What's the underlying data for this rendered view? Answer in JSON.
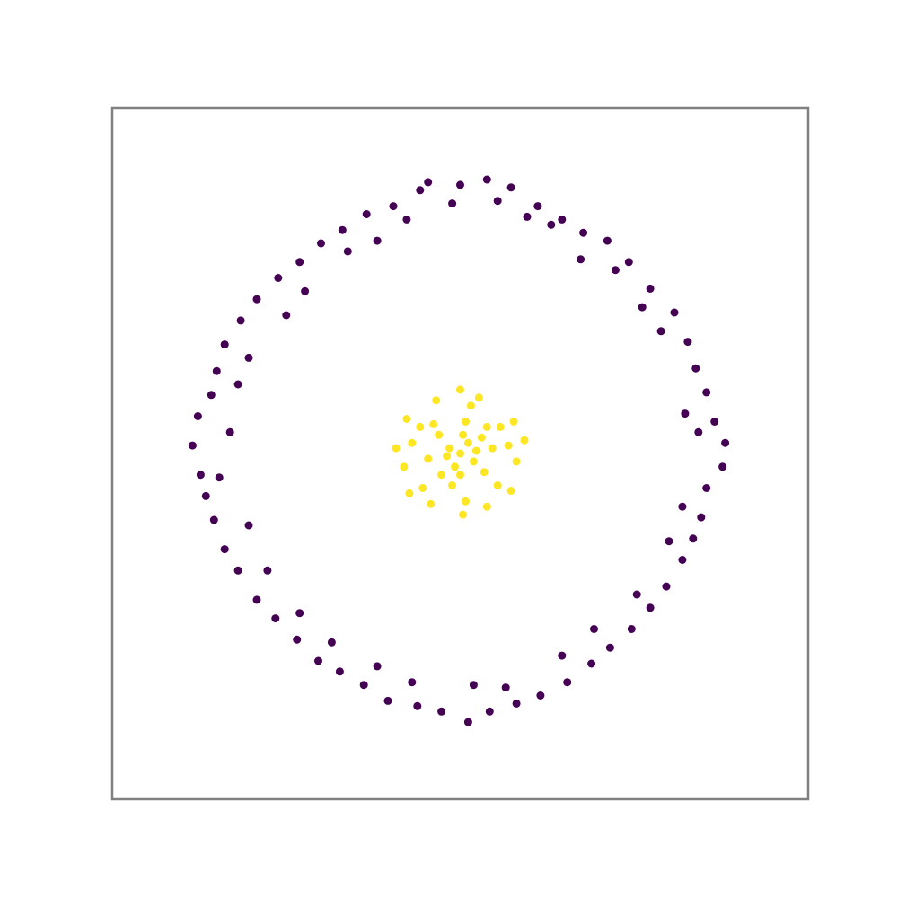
{
  "chart_data": {
    "type": "scatter",
    "title": "",
    "xlabel": "",
    "ylabel": "",
    "xlim": [
      -1.3,
      1.3
    ],
    "ylim": [
      -1.3,
      1.3
    ],
    "grid": false,
    "axes_ticks": false,
    "frame_color": "#808080",
    "series": [
      {
        "color": "#440154",
        "points": [
          [
            -0.12,
            1.02
          ],
          [
            0.0,
            1.01
          ],
          [
            0.1,
            1.03
          ],
          [
            0.19,
            1.0
          ],
          [
            0.29,
            0.93
          ],
          [
            0.38,
            0.88
          ],
          [
            0.46,
            0.83
          ],
          [
            0.55,
            0.8
          ],
          [
            0.63,
            0.72
          ],
          [
            0.71,
            0.62
          ],
          [
            0.8,
            0.53
          ],
          [
            0.85,
            0.42
          ],
          [
            0.88,
            0.32
          ],
          [
            0.92,
            0.23
          ],
          [
            0.95,
            0.12
          ],
          [
            0.99,
            0.04
          ],
          [
            0.98,
            -0.05
          ],
          [
            0.92,
            -0.13
          ],
          [
            0.9,
            -0.24
          ],
          [
            0.87,
            -0.32
          ],
          [
            0.83,
            -0.4
          ],
          [
            0.77,
            -0.5
          ],
          [
            0.71,
            -0.58
          ],
          [
            0.64,
            -0.66
          ],
          [
            0.56,
            -0.73
          ],
          [
            0.49,
            -0.79
          ],
          [
            0.4,
            -0.86
          ],
          [
            0.3,
            -0.91
          ],
          [
            0.21,
            -0.94
          ],
          [
            0.11,
            -0.97
          ],
          [
            0.03,
            -1.01
          ],
          [
            -0.07,
            -0.97
          ],
          [
            -0.16,
            -0.95
          ],
          [
            -0.27,
            -0.93
          ],
          [
            -0.36,
            -0.87
          ],
          [
            -0.45,
            -0.82
          ],
          [
            -0.53,
            -0.78
          ],
          [
            -0.61,
            -0.7
          ],
          [
            -0.69,
            -0.62
          ],
          [
            -0.76,
            -0.55
          ],
          [
            -0.83,
            -0.44
          ],
          [
            -0.88,
            -0.36
          ],
          [
            -0.92,
            -0.25
          ],
          [
            -0.95,
            -0.16
          ],
          [
            -0.97,
            -0.08
          ],
          [
            -1.0,
            0.03
          ],
          [
            -0.98,
            0.14
          ],
          [
            -0.93,
            0.22
          ],
          [
            -0.91,
            0.31
          ],
          [
            -0.88,
            0.41
          ],
          [
            -0.82,
            0.5
          ],
          [
            -0.76,
            0.58
          ],
          [
            -0.68,
            0.66
          ],
          [
            -0.6,
            0.72
          ],
          [
            -0.52,
            0.79
          ],
          [
            -0.44,
            0.84
          ],
          [
            -0.35,
            0.9
          ],
          [
            -0.25,
            0.93
          ],
          [
            -0.15,
            0.99
          ],
          [
            -0.03,
            0.94
          ],
          [
            0.14,
            0.95
          ],
          [
            0.34,
            0.86
          ],
          [
            0.58,
            0.69
          ],
          [
            0.75,
            0.46
          ],
          [
            0.84,
            0.15
          ],
          [
            0.83,
            -0.2
          ],
          [
            0.66,
            -0.53
          ],
          [
            0.38,
            -0.76
          ],
          [
            0.05,
            -0.87
          ],
          [
            -0.31,
            -0.8
          ],
          [
            -0.6,
            -0.6
          ],
          [
            -0.79,
            -0.27
          ],
          [
            -0.86,
            0.08
          ],
          [
            -0.79,
            0.36
          ],
          [
            -0.58,
            0.61
          ],
          [
            -0.31,
            0.8
          ],
          [
            -0.2,
            0.88
          ],
          [
            0.25,
            0.89
          ],
          [
            0.45,
            0.73
          ],
          [
            0.68,
            0.55
          ],
          [
            0.89,
            0.08
          ],
          [
            0.78,
            -0.33
          ],
          [
            0.5,
            -0.66
          ],
          [
            0.17,
            -0.88
          ],
          [
            -0.18,
            -0.86
          ],
          [
            -0.48,
            -0.71
          ],
          [
            -0.72,
            -0.44
          ],
          [
            -0.9,
            -0.09
          ],
          [
            -0.83,
            0.26
          ],
          [
            -0.65,
            0.52
          ],
          [
            -0.42,
            0.76
          ]
        ]
      },
      {
        "color": "#fde725",
        "points": [
          [
            0.0,
            0.0
          ],
          [
            0.03,
            0.04
          ],
          [
            -0.04,
            0.02
          ],
          [
            0.05,
            -0.03
          ],
          [
            -0.02,
            -0.05
          ],
          [
            0.08,
            0.06
          ],
          [
            -0.08,
            0.07
          ],
          [
            0.09,
            -0.07
          ],
          [
            -0.07,
            -0.08
          ],
          [
            0.12,
            0.02
          ],
          [
            -0.12,
            -0.02
          ],
          [
            0.02,
            0.12
          ],
          [
            -0.03,
            -0.12
          ],
          [
            0.15,
            0.1
          ],
          [
            -0.15,
            0.1
          ],
          [
            0.14,
            -0.12
          ],
          [
            -0.14,
            -0.13
          ],
          [
            0.18,
            0.03
          ],
          [
            -0.18,
            0.04
          ],
          [
            0.04,
            0.18
          ],
          [
            0.02,
            -0.18
          ],
          [
            0.21,
            -0.03
          ],
          [
            -0.21,
            -0.05
          ],
          [
            0.07,
            0.21
          ],
          [
            -0.09,
            0.2
          ],
          [
            0.1,
            -0.2
          ],
          [
            -0.11,
            -0.19
          ],
          [
            0.2,
            0.12
          ],
          [
            -0.2,
            0.13
          ],
          [
            0.19,
            -0.14
          ],
          [
            -0.19,
            -0.15
          ],
          [
            0.24,
            0.05
          ],
          [
            -0.24,
            0.02
          ],
          [
            0.0,
            0.24
          ],
          [
            0.01,
            -0.23
          ],
          [
            0.06,
            0.01
          ],
          [
            -0.05,
            -0.01
          ],
          [
            0.01,
            0.07
          ],
          [
            0.0,
            -0.08
          ],
          [
            0.1,
            0.1
          ],
          [
            -0.1,
            0.11
          ]
        ]
      }
    ]
  }
}
